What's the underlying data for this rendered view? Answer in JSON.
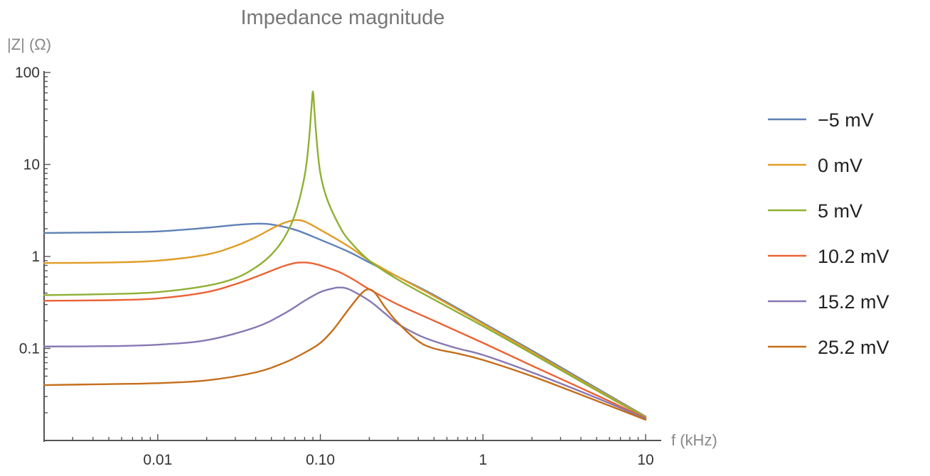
{
  "chart_data": {
    "type": "line",
    "title": "Impedance magnitude",
    "xlabel": "f (kHz)",
    "ylabel": "|Z| (Ω)",
    "xscale": "log",
    "yscale": "log",
    "xlim": [
      0.002,
      10
    ],
    "ylim": [
      0.01,
      100
    ],
    "xticks": [
      {
        "value": 0.01,
        "label": "0.01"
      },
      {
        "value": 0.1,
        "label": "0.10"
      },
      {
        "value": 1,
        "label": "1"
      },
      {
        "value": 10,
        "label": "10"
      }
    ],
    "yticks": [
      {
        "value": 100,
        "label": "100"
      },
      {
        "value": 10,
        "label": "10"
      },
      {
        "value": 1,
        "label": "1"
      },
      {
        "value": 0.1,
        "label": "0.1"
      }
    ],
    "grid": false,
    "legend_position": "right",
    "series": [
      {
        "name": "−5 mV",
        "color": "#5e81b5",
        "x": [
          0.002,
          0.005,
          0.01,
          0.02,
          0.03,
          0.04,
          0.05,
          0.07,
          0.1,
          0.15,
          0.2,
          0.3,
          0.5,
          1,
          2,
          5,
          10
        ],
        "y": [
          1.8,
          1.83,
          1.87,
          2.05,
          2.2,
          2.27,
          2.23,
          1.95,
          1.52,
          1.12,
          0.86,
          0.6,
          0.38,
          0.19,
          0.095,
          0.037,
          0.0182
        ]
      },
      {
        "name": "0 mV",
        "color": "#e19c24",
        "x": [
          0.002,
          0.005,
          0.01,
          0.02,
          0.03,
          0.04,
          0.05,
          0.06,
          0.07,
          0.08,
          0.1,
          0.15,
          0.2,
          0.3,
          0.5,
          1,
          2,
          5,
          10
        ],
        "y": [
          0.85,
          0.86,
          0.9,
          1.05,
          1.3,
          1.62,
          2.0,
          2.32,
          2.48,
          2.4,
          1.95,
          1.28,
          0.9,
          0.6,
          0.37,
          0.185,
          0.092,
          0.036,
          0.018
        ]
      },
      {
        "name": "5 mV",
        "color": "#8fb032",
        "x": [
          0.002,
          0.005,
          0.01,
          0.02,
          0.03,
          0.04,
          0.05,
          0.06,
          0.07,
          0.08,
          0.085,
          0.088,
          0.09,
          0.092,
          0.095,
          0.1,
          0.11,
          0.13,
          0.15,
          0.2,
          0.3,
          0.5,
          1,
          2,
          5,
          10
        ],
        "y": [
          0.38,
          0.39,
          0.41,
          0.48,
          0.58,
          0.76,
          1.05,
          1.6,
          2.9,
          7.5,
          18,
          40,
          62,
          38,
          18,
          8.0,
          4.2,
          2.2,
          1.5,
          0.9,
          0.56,
          0.34,
          0.175,
          0.088,
          0.035,
          0.0178
        ]
      },
      {
        "name": "10.2 mV",
        "color": "#eb6235",
        "x": [
          0.002,
          0.005,
          0.01,
          0.02,
          0.03,
          0.04,
          0.05,
          0.06,
          0.07,
          0.08,
          0.09,
          0.1,
          0.13,
          0.16,
          0.2,
          0.3,
          0.5,
          1,
          2,
          5,
          10
        ],
        "y": [
          0.33,
          0.335,
          0.35,
          0.41,
          0.5,
          0.6,
          0.7,
          0.79,
          0.85,
          0.86,
          0.84,
          0.8,
          0.68,
          0.56,
          0.44,
          0.3,
          0.2,
          0.115,
          0.065,
          0.031,
          0.0175
        ]
      },
      {
        "name": "15.2 mV",
        "color": "#8778b3",
        "x": [
          0.002,
          0.005,
          0.01,
          0.02,
          0.04,
          0.06,
          0.08,
          0.1,
          0.12,
          0.13,
          0.15,
          0.2,
          0.25,
          0.3,
          0.4,
          0.5,
          0.7,
          1,
          2,
          5,
          10
        ],
        "y": [
          0.105,
          0.106,
          0.11,
          0.123,
          0.17,
          0.24,
          0.33,
          0.41,
          0.45,
          0.46,
          0.44,
          0.33,
          0.24,
          0.185,
          0.14,
          0.12,
          0.1,
          0.085,
          0.055,
          0.029,
          0.0172
        ]
      },
      {
        "name": "25.2 mV",
        "color": "#c56e1a",
        "x": [
          0.002,
          0.005,
          0.01,
          0.02,
          0.04,
          0.06,
          0.08,
          0.1,
          0.12,
          0.15,
          0.18,
          0.2,
          0.22,
          0.25,
          0.3,
          0.4,
          0.5,
          0.7,
          1,
          2,
          5,
          10
        ],
        "y": [
          0.04,
          0.041,
          0.042,
          0.045,
          0.055,
          0.07,
          0.09,
          0.115,
          0.16,
          0.27,
          0.4,
          0.44,
          0.39,
          0.28,
          0.19,
          0.12,
          0.1,
          0.088,
          0.075,
          0.05,
          0.027,
          0.0168
        ]
      }
    ]
  }
}
